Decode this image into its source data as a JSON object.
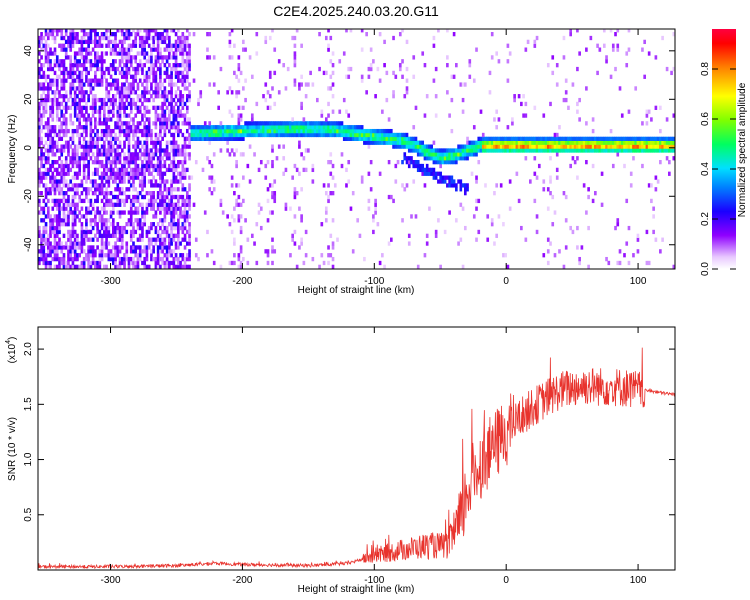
{
  "title": "C2E4.2025.240.03.20.G11",
  "chart_data": [
    {
      "type": "heatmap",
      "xlabel": "Height of straight line (km)",
      "ylabel": "Frequency (Hz)",
      "xlim": [
        -355,
        128
      ],
      "ylim": [
        -50,
        49
      ],
      "x_ticks": [
        "-300",
        "-200",
        "-100",
        "0",
        "100"
      ],
      "y_ticks": [
        "40",
        "20",
        "0",
        "-20",
        "-40"
      ],
      "colorbar": {
        "label": "Normalized spectral amplitude",
        "range": [
          0,
          0.96
        ],
        "ticks": [
          "0.0",
          "0.2",
          "0.4",
          "0.6",
          "0.8"
        ]
      },
      "ridge": {
        "x": [
          -235,
          -200,
          -160,
          -130,
          -110,
          -90,
          -80,
          -70,
          -60,
          -50,
          -40,
          -30,
          -20,
          0,
          50,
          100,
          128
        ],
        "y": [
          5,
          6,
          7,
          6.5,
          4.5,
          3,
          2,
          0,
          -3,
          -5,
          -4,
          -2,
          0,
          0,
          0,
          0,
          0
        ]
      }
    },
    {
      "type": "line",
      "xlabel": "Height of straight line (km)",
      "ylabel": "SNR (10 * v/v)",
      "y_scale_label": "(x10",
      "y_scale_exp": "4",
      "y_scale_close": ")",
      "xlim": [
        -355,
        128
      ],
      "ylim": [
        0,
        2.2
      ],
      "x_ticks": [
        "-300",
        "-200",
        "-100",
        "0",
        "100"
      ],
      "y_ticks": [
        "0.5",
        "1.0",
        "1.5",
        "2.0"
      ],
      "color": "#e8332d",
      "series": [
        {
          "x": [
            -355,
            -300,
            -250,
            -220,
            -200,
            -150,
            -120,
            -100,
            -80,
            -60,
            -45,
            -35,
            -30,
            -25,
            -20,
            -10,
            0,
            10,
            20,
            30,
            40,
            50,
            60,
            70,
            80,
            90,
            100,
            110,
            120,
            128
          ],
          "y": [
            0.03,
            0.03,
            0.04,
            0.06,
            0.05,
            0.04,
            0.06,
            0.13,
            0.18,
            0.22,
            0.22,
            0.4,
            0.7,
            0.85,
            0.95,
            1.1,
            1.25,
            1.38,
            1.47,
            1.55,
            1.62,
            1.65,
            1.67,
            1.66,
            1.66,
            1.65,
            1.63,
            1.62,
            1.6,
            1.59
          ]
        }
      ]
    }
  ]
}
